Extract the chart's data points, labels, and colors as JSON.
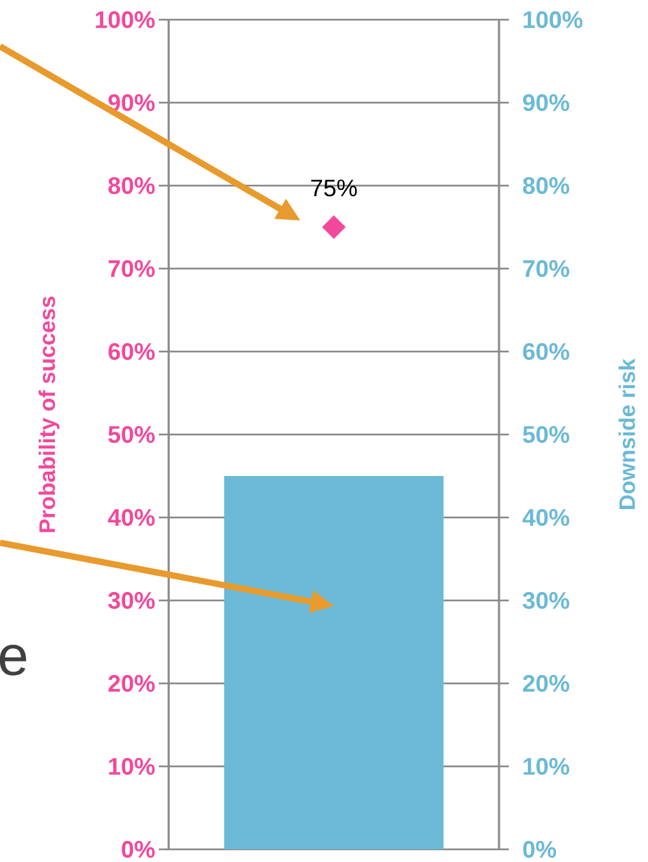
{
  "chart_data": {
    "type": "bar",
    "categories": [
      null
    ],
    "ylabel": "Probability of success",
    "y2label": "Downside risk",
    "ylim": [
      0,
      100
    ],
    "yticks": [
      {
        "value": 0,
        "label": "0%"
      },
      {
        "value": 10,
        "label": "10%"
      },
      {
        "value": 20,
        "label": "20%"
      },
      {
        "value": 30,
        "label": "30%"
      },
      {
        "value": 40,
        "label": "40%"
      },
      {
        "value": 50,
        "label": "50%"
      },
      {
        "value": 60,
        "label": "60%"
      },
      {
        "value": 70,
        "label": "70%"
      },
      {
        "value": 80,
        "label": "80%"
      },
      {
        "value": 90,
        "label": "90%"
      },
      {
        "value": 100,
        "label": "100%"
      }
    ],
    "y2lim": [
      0,
      100
    ],
    "y2ticks": [
      {
        "value": 0,
        "label": "0%"
      },
      {
        "value": 10,
        "label": "10%"
      },
      {
        "value": 20,
        "label": "20%"
      },
      {
        "value": 30,
        "label": "30%"
      },
      {
        "value": 40,
        "label": "40%"
      },
      {
        "value": 50,
        "label": "50%"
      },
      {
        "value": 60,
        "label": "60%"
      },
      {
        "value": 70,
        "label": "70%"
      },
      {
        "value": 80,
        "label": "80%"
      },
      {
        "value": 90,
        "label": "90%"
      },
      {
        "value": 100,
        "label": "100%"
      }
    ],
    "grid": "y",
    "marker": "diamond",
    "series": [
      {
        "axis": "y2",
        "color": "#6bb9d6",
        "values": [
          45
        ]
      },
      {
        "type": "scatter",
        "color": "#f2489b",
        "values": [
          75
        ],
        "value_labels": [
          "75%"
        ]
      }
    ],
    "annotations": [
      "e"
    ]
  }
}
